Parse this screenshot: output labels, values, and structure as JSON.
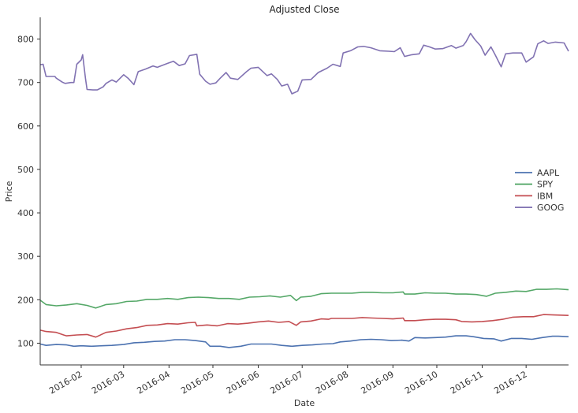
{
  "chart_data": {
    "type": "line",
    "title": "Adjusted Close",
    "xlabel": "Date",
    "ylabel": "Price",
    "ylim": [
      50,
      850
    ],
    "xlim": [
      "2016-01-04",
      "2016-12-30"
    ],
    "y_ticks": [
      100,
      200,
      300,
      400,
      500,
      600,
      700,
      800
    ],
    "x_ticks": [
      "2016-02",
      "2016-03",
      "2016-04",
      "2016-05",
      "2016-06",
      "2016-07",
      "2016-08",
      "2016-09",
      "2016-10",
      "2016-11",
      "2016-12"
    ],
    "grid": false,
    "legend_position": "right",
    "series": [
      {
        "name": "AAPL",
        "color": "#4c72b0",
        "points": [
          [
            "2016-01-04",
            98
          ],
          [
            "2016-01-08",
            95
          ],
          [
            "2016-01-15",
            97
          ],
          [
            "2016-01-22",
            96
          ],
          [
            "2016-01-27",
            93
          ],
          [
            "2016-02-01",
            94
          ],
          [
            "2016-02-08",
            93
          ],
          [
            "2016-02-15",
            94
          ],
          [
            "2016-02-22",
            95
          ],
          [
            "2016-03-01",
            97
          ],
          [
            "2016-03-08",
            101
          ],
          [
            "2016-03-15",
            102
          ],
          [
            "2016-03-22",
            104
          ],
          [
            "2016-03-29",
            105
          ],
          [
            "2016-04-05",
            108
          ],
          [
            "2016-04-12",
            108
          ],
          [
            "2016-04-19",
            106
          ],
          [
            "2016-04-26",
            103
          ],
          [
            "2016-04-29",
            93
          ],
          [
            "2016-05-06",
            93
          ],
          [
            "2016-05-12",
            90
          ],
          [
            "2016-05-20",
            93
          ],
          [
            "2016-05-27",
            98
          ],
          [
            "2016-06-03",
            98
          ],
          [
            "2016-06-10",
            98
          ],
          [
            "2016-06-17",
            95
          ],
          [
            "2016-06-24",
            93
          ],
          [
            "2016-07-01",
            95
          ],
          [
            "2016-07-08",
            96
          ],
          [
            "2016-07-15",
            98
          ],
          [
            "2016-07-22",
            99
          ],
          [
            "2016-07-27",
            103
          ],
          [
            "2016-08-03",
            105
          ],
          [
            "2016-08-10",
            108
          ],
          [
            "2016-08-17",
            109
          ],
          [
            "2016-08-24",
            108
          ],
          [
            "2016-08-31",
            106
          ],
          [
            "2016-09-07",
            107
          ],
          [
            "2016-09-12",
            105
          ],
          [
            "2016-09-16",
            113
          ],
          [
            "2016-09-23",
            112
          ],
          [
            "2016-09-30",
            113
          ],
          [
            "2016-10-07",
            114
          ],
          [
            "2016-10-14",
            117
          ],
          [
            "2016-10-21",
            117
          ],
          [
            "2016-10-26",
            115
          ],
          [
            "2016-11-02",
            111
          ],
          [
            "2016-11-09",
            110
          ],
          [
            "2016-11-14",
            105
          ],
          [
            "2016-11-21",
            111
          ],
          [
            "2016-11-28",
            111
          ],
          [
            "2016-12-05",
            109
          ],
          [
            "2016-12-12",
            113
          ],
          [
            "2016-12-19",
            116
          ],
          [
            "2016-12-23",
            116
          ],
          [
            "2016-12-30",
            115
          ]
        ]
      },
      {
        "name": "SPY",
        "color": "#55a868",
        "points": [
          [
            "2016-01-04",
            199
          ],
          [
            "2016-01-08",
            189
          ],
          [
            "2016-01-15",
            186
          ],
          [
            "2016-01-22",
            188
          ],
          [
            "2016-01-29",
            191
          ],
          [
            "2016-02-05",
            187
          ],
          [
            "2016-02-11",
            181
          ],
          [
            "2016-02-18",
            189
          ],
          [
            "2016-02-25",
            191
          ],
          [
            "2016-03-03",
            196
          ],
          [
            "2016-03-10",
            197
          ],
          [
            "2016-03-17",
            201
          ],
          [
            "2016-03-24",
            201
          ],
          [
            "2016-03-31",
            203
          ],
          [
            "2016-04-07",
            201
          ],
          [
            "2016-04-14",
            205
          ],
          [
            "2016-04-21",
            206
          ],
          [
            "2016-04-28",
            205
          ],
          [
            "2016-05-05",
            203
          ],
          [
            "2016-05-12",
            203
          ],
          [
            "2016-05-19",
            201
          ],
          [
            "2016-05-26",
            206
          ],
          [
            "2016-06-02",
            207
          ],
          [
            "2016-06-09",
            209
          ],
          [
            "2016-06-16",
            206
          ],
          [
            "2016-06-23",
            210
          ],
          [
            "2016-06-27",
            198
          ],
          [
            "2016-06-30",
            206
          ],
          [
            "2016-07-07",
            208
          ],
          [
            "2016-07-14",
            214
          ],
          [
            "2016-07-21",
            215
          ],
          [
            "2016-07-28",
            215
          ],
          [
            "2016-08-04",
            215
          ],
          [
            "2016-08-11",
            217
          ],
          [
            "2016-08-18",
            217
          ],
          [
            "2016-08-25",
            216
          ],
          [
            "2016-09-01",
            216
          ],
          [
            "2016-09-08",
            218
          ],
          [
            "2016-09-09",
            213
          ],
          [
            "2016-09-16",
            213
          ],
          [
            "2016-09-23",
            216
          ],
          [
            "2016-09-30",
            215
          ],
          [
            "2016-10-07",
            215
          ],
          [
            "2016-10-14",
            213
          ],
          [
            "2016-10-21",
            213
          ],
          [
            "2016-10-28",
            212
          ],
          [
            "2016-11-04",
            208
          ],
          [
            "2016-11-10",
            215
          ],
          [
            "2016-11-17",
            217
          ],
          [
            "2016-11-24",
            220
          ],
          [
            "2016-12-01",
            219
          ],
          [
            "2016-12-08",
            224
          ],
          [
            "2016-12-15",
            224
          ],
          [
            "2016-12-22",
            225
          ],
          [
            "2016-12-30",
            223
          ]
        ]
      },
      {
        "name": "IBM",
        "color": "#c44e52",
        "points": [
          [
            "2016-01-04",
            130
          ],
          [
            "2016-01-08",
            127
          ],
          [
            "2016-01-15",
            125
          ],
          [
            "2016-01-20",
            119
          ],
          [
            "2016-01-22",
            117
          ],
          [
            "2016-01-29",
            119
          ],
          [
            "2016-02-05",
            120
          ],
          [
            "2016-02-11",
            114
          ],
          [
            "2016-02-18",
            125
          ],
          [
            "2016-02-25",
            128
          ],
          [
            "2016-03-03",
            133
          ],
          [
            "2016-03-10",
            136
          ],
          [
            "2016-03-17",
            141
          ],
          [
            "2016-03-24",
            142
          ],
          [
            "2016-03-31",
            145
          ],
          [
            "2016-04-07",
            144
          ],
          [
            "2016-04-14",
            147
          ],
          [
            "2016-04-19",
            148
          ],
          [
            "2016-04-20",
            140
          ],
          [
            "2016-04-27",
            142
          ],
          [
            "2016-05-04",
            140
          ],
          [
            "2016-05-11",
            145
          ],
          [
            "2016-05-18",
            144
          ],
          [
            "2016-05-25",
            146
          ],
          [
            "2016-06-01",
            149
          ],
          [
            "2016-06-08",
            151
          ],
          [
            "2016-06-15",
            148
          ],
          [
            "2016-06-22",
            150
          ],
          [
            "2016-06-27",
            141
          ],
          [
            "2016-06-30",
            149
          ],
          [
            "2016-07-07",
            151
          ],
          [
            "2016-07-14",
            156
          ],
          [
            "2016-07-19",
            155
          ],
          [
            "2016-07-21",
            157
          ],
          [
            "2016-07-28",
            157
          ],
          [
            "2016-08-04",
            157
          ],
          [
            "2016-08-11",
            159
          ],
          [
            "2016-08-18",
            158
          ],
          [
            "2016-08-25",
            157
          ],
          [
            "2016-09-01",
            156
          ],
          [
            "2016-09-08",
            158
          ],
          [
            "2016-09-09",
            152
          ],
          [
            "2016-09-16",
            152
          ],
          [
            "2016-09-23",
            154
          ],
          [
            "2016-09-30",
            155
          ],
          [
            "2016-10-07",
            155
          ],
          [
            "2016-10-14",
            154
          ],
          [
            "2016-10-18",
            150
          ],
          [
            "2016-10-25",
            149
          ],
          [
            "2016-11-01",
            150
          ],
          [
            "2016-11-08",
            152
          ],
          [
            "2016-11-15",
            155
          ],
          [
            "2016-11-22",
            160
          ],
          [
            "2016-11-29",
            161
          ],
          [
            "2016-12-06",
            161
          ],
          [
            "2016-12-13",
            166
          ],
          [
            "2016-12-20",
            165
          ],
          [
            "2016-12-30",
            164
          ]
        ]
      },
      {
        "name": "GOOG",
        "color": "#8172b2",
        "points": [
          [
            "2016-01-04",
            741
          ],
          [
            "2016-01-06",
            742
          ],
          [
            "2016-01-08",
            714
          ],
          [
            "2016-01-12",
            714
          ],
          [
            "2016-01-14",
            714
          ],
          [
            "2016-01-15",
            710
          ],
          [
            "2016-01-19",
            701
          ],
          [
            "2016-01-21",
            698
          ],
          [
            "2016-01-25",
            700
          ],
          [
            "2016-01-27",
            700
          ],
          [
            "2016-01-29",
            742
          ],
          [
            "2016-02-01",
            752
          ],
          [
            "2016-02-02",
            764
          ],
          [
            "2016-02-04",
            708
          ],
          [
            "2016-02-05",
            684
          ],
          [
            "2016-02-09",
            683
          ],
          [
            "2016-02-12",
            683
          ],
          [
            "2016-02-16",
            690
          ],
          [
            "2016-02-18",
            698
          ],
          [
            "2016-02-22",
            706
          ],
          [
            "2016-02-25",
            701
          ],
          [
            "2016-03-01",
            718
          ],
          [
            "2016-03-04",
            710
          ],
          [
            "2016-03-08",
            695
          ],
          [
            "2016-03-11",
            725
          ],
          [
            "2016-03-16",
            731
          ],
          [
            "2016-03-21",
            738
          ],
          [
            "2016-03-24",
            735
          ],
          [
            "2016-03-31",
            744
          ],
          [
            "2016-04-04",
            749
          ],
          [
            "2016-04-08",
            739
          ],
          [
            "2016-04-12",
            743
          ],
          [
            "2016-04-15",
            762
          ],
          [
            "2016-04-20",
            765
          ],
          [
            "2016-04-22",
            719
          ],
          [
            "2016-04-26",
            703
          ],
          [
            "2016-04-29",
            696
          ],
          [
            "2016-05-03",
            699
          ],
          [
            "2016-05-06",
            710
          ],
          [
            "2016-05-10",
            723
          ],
          [
            "2016-05-13",
            710
          ],
          [
            "2016-05-18",
            707
          ],
          [
            "2016-05-24",
            725
          ],
          [
            "2016-05-27",
            733
          ],
          [
            "2016-06-01",
            735
          ],
          [
            "2016-06-07",
            716
          ],
          [
            "2016-06-10",
            720
          ],
          [
            "2016-06-14",
            707
          ],
          [
            "2016-06-17",
            692
          ],
          [
            "2016-06-21",
            696
          ],
          [
            "2016-06-24",
            674
          ],
          [
            "2016-06-28",
            680
          ],
          [
            "2016-07-01",
            706
          ],
          [
            "2016-07-07",
            707
          ],
          [
            "2016-07-12",
            723
          ],
          [
            "2016-07-18",
            733
          ],
          [
            "2016-07-22",
            742
          ],
          [
            "2016-07-27",
            737
          ],
          [
            "2016-07-29",
            768
          ],
          [
            "2016-08-03",
            773
          ],
          [
            "2016-08-08",
            782
          ],
          [
            "2016-08-12",
            783
          ],
          [
            "2016-08-17",
            780
          ],
          [
            "2016-08-23",
            773
          ],
          [
            "2016-08-29",
            772
          ],
          [
            "2016-09-02",
            771
          ],
          [
            "2016-09-06",
            780
          ],
          [
            "2016-09-09",
            760
          ],
          [
            "2016-09-14",
            764
          ],
          [
            "2016-09-19",
            766
          ],
          [
            "2016-09-22",
            786
          ],
          [
            "2016-09-26",
            782
          ],
          [
            "2016-09-30",
            777
          ],
          [
            "2016-10-05",
            778
          ],
          [
            "2016-10-11",
            785
          ],
          [
            "2016-10-14",
            779
          ],
          [
            "2016-10-19",
            785
          ],
          [
            "2016-10-21",
            794
          ],
          [
            "2016-10-24",
            813
          ],
          [
            "2016-10-27",
            799
          ],
          [
            "2016-10-31",
            784
          ],
          [
            "2016-11-03",
            763
          ],
          [
            "2016-11-07",
            782
          ],
          [
            "2016-11-10",
            763
          ],
          [
            "2016-11-14",
            736
          ],
          [
            "2016-11-17",
            766
          ],
          [
            "2016-11-22",
            768
          ],
          [
            "2016-11-28",
            768
          ],
          [
            "2016-12-01",
            747
          ],
          [
            "2016-12-06",
            759
          ],
          [
            "2016-12-09",
            789
          ],
          [
            "2016-12-13",
            796
          ],
          [
            "2016-12-16",
            790
          ],
          [
            "2016-12-21",
            793
          ],
          [
            "2016-12-27",
            791
          ],
          [
            "2016-12-30",
            772
          ]
        ]
      }
    ]
  }
}
